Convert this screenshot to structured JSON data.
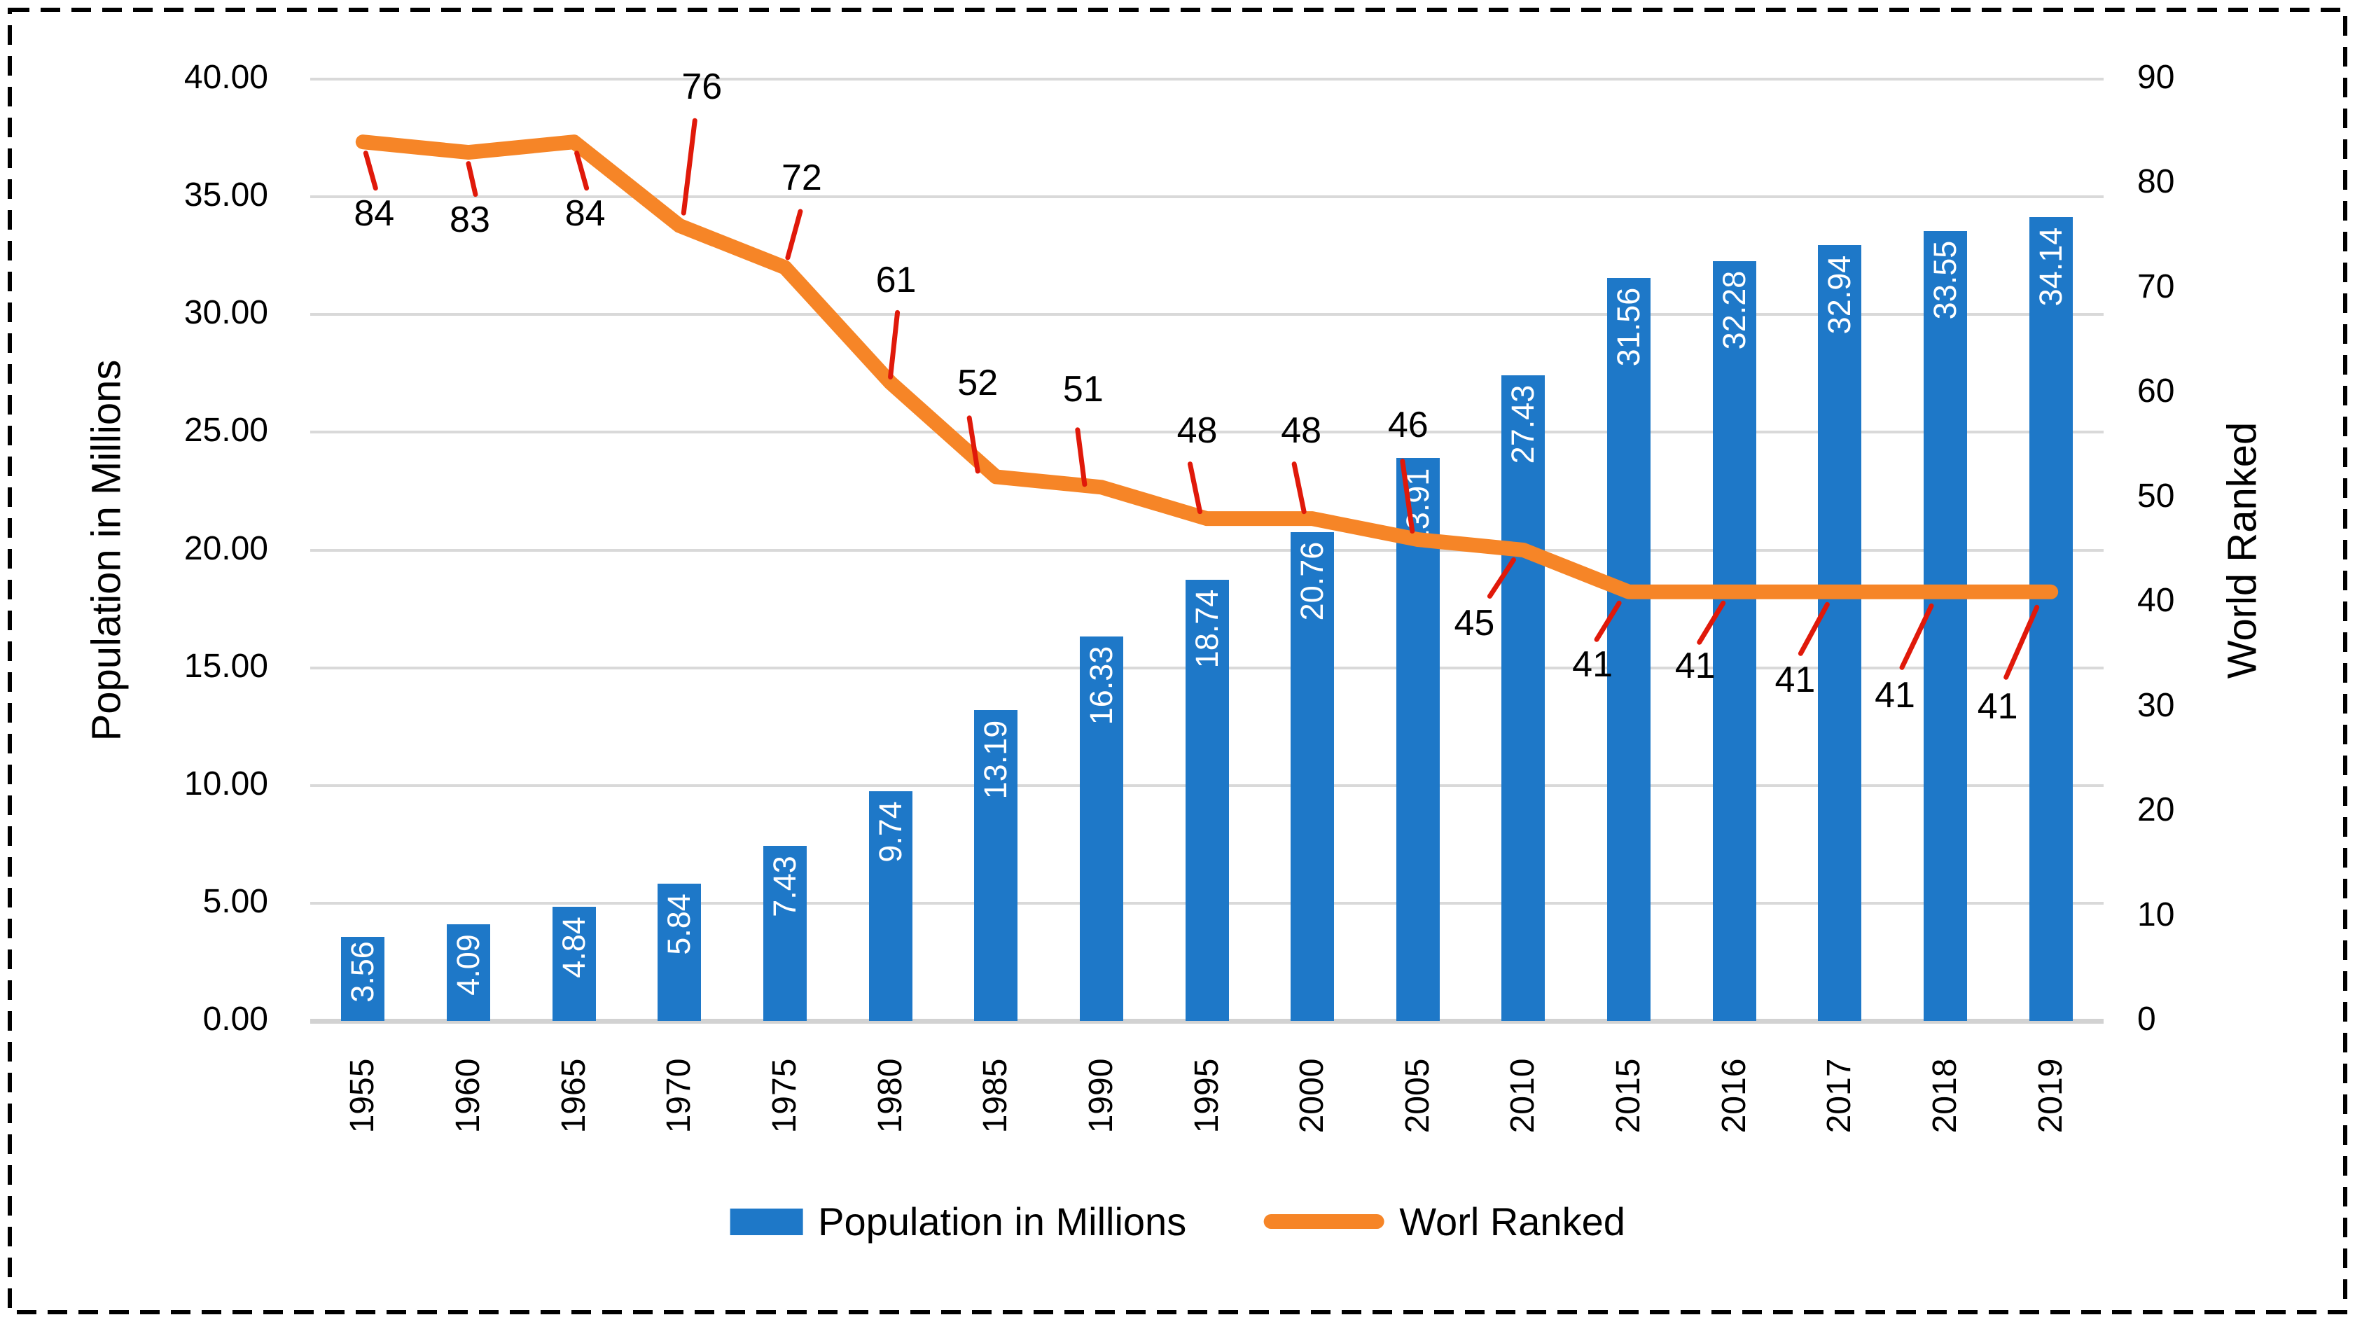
{
  "chart_data": {
    "type": "combo-bar-line",
    "categories": [
      "1955",
      "1960",
      "1965",
      "1970",
      "1975",
      "1980",
      "1985",
      "1990",
      "1995",
      "2000",
      "2005",
      "2010",
      "2015",
      "2016",
      "2017",
      "2018",
      "2019"
    ],
    "series": [
      {
        "name": "Population in Millions",
        "type": "bar",
        "axis": "left",
        "color": "#1E78C8",
        "values": [
          3.56,
          4.09,
          4.84,
          5.84,
          7.43,
          9.74,
          13.19,
          16.33,
          18.74,
          20.76,
          23.91,
          27.43,
          31.56,
          32.28,
          32.94,
          33.55,
          34.14
        ],
        "data_labels": [
          "3.56",
          "4.09",
          "4.84",
          "5.84",
          "7.43",
          "9.74",
          "13.19",
          "16.33",
          "18.74",
          "20.76",
          "23.91",
          "27.43",
          "31.56",
          "32.28",
          "32.94",
          "33.55",
          "34.14"
        ]
      },
      {
        "name": "Worl Ranked",
        "type": "line",
        "axis": "right",
        "color": "#F68527",
        "values": [
          84,
          83,
          84,
          76,
          72,
          61,
          52,
          51,
          48,
          48,
          46,
          45,
          41,
          41,
          41,
          41,
          41
        ]
      }
    ],
    "left_axis": {
      "title": "Population in Millions",
      "min": 0,
      "max": 40,
      "step": 5,
      "tick_labels": [
        "0.00",
        "5.00",
        "10.00",
        "15.00",
        "20.00",
        "25.00",
        "30.00",
        "35.00",
        "40.00"
      ]
    },
    "right_axis": {
      "title": "World Ranked",
      "min": 0,
      "max": 90,
      "step": 10,
      "tick_labels": [
        "0",
        "10",
        "20",
        "30",
        "40",
        "50",
        "60",
        "70",
        "80",
        "90"
      ]
    },
    "grid": true,
    "gridline_color": "#D9D9D9",
    "legend_position": "bottom",
    "legend": [
      {
        "label": "Population in Millions",
        "marker": "bar"
      },
      {
        "label": "Worl Ranked",
        "marker": "line"
      }
    ],
    "annotations": {
      "color": "#E0190A",
      "items": [
        {
          "text": "84",
          "line": [
            4,
            16,
            18,
            66
          ],
          "label": [
            16,
            102
          ]
        },
        {
          "text": "83",
          "line": [
            0,
            16,
            10,
            60
          ],
          "label": [
            2,
            96
          ]
        },
        {
          "text": "84",
          "line": [
            4,
            16,
            18,
            66
          ],
          "label": [
            16,
            102
          ]
        },
        {
          "text": "76",
          "line": [
            6,
            -18,
            22,
            -150
          ],
          "label": [
            32,
            -198
          ]
        },
        {
          "text": "72",
          "line": [
            4,
            -14,
            22,
            -80
          ],
          "label": [
            24,
            -128
          ]
        },
        {
          "text": "61",
          "line": [
            0,
            -8,
            10,
            -100
          ],
          "label": [
            8,
            -146
          ]
        },
        {
          "text": "52",
          "line": [
            -26,
            -8,
            -38,
            -84
          ],
          "label": [
            -26,
            -134
          ]
        },
        {
          "text": "51",
          "line": [
            -24,
            -4,
            -34,
            -82
          ],
          "label": [
            -26,
            -140
          ]
        },
        {
          "text": "48",
          "line": [
            -10,
            -10,
            -24,
            -78
          ],
          "label": [
            -14,
            -126
          ]
        },
        {
          "text": "48",
          "line": [
            -12,
            -10,
            -26,
            -78
          ],
          "label": [
            -16,
            -126
          ]
        },
        {
          "text": "46",
          "line": [
            -8,
            -12,
            -22,
            -112
          ],
          "label": [
            -14,
            -164
          ]
        },
        {
          "text": "45",
          "line": [
            -14,
            14,
            -48,
            66
          ],
          "label": [
            -70,
            104
          ]
        },
        {
          "text": "41",
          "line": [
            -14,
            16,
            -46,
            68
          ],
          "label": [
            -52,
            104
          ]
        },
        {
          "text": "41",
          "line": [
            -16,
            16,
            -50,
            72
          ],
          "label": [
            -56,
            106
          ]
        },
        {
          "text": "41",
          "line": [
            -18,
            18,
            -56,
            88
          ],
          "label": [
            -64,
            126
          ]
        },
        {
          "text": "41",
          "line": [
            -20,
            20,
            -62,
            108
          ],
          "label": [
            -72,
            148
          ]
        },
        {
          "text": "41",
          "line": [
            -20,
            22,
            -64,
            122
          ],
          "label": [
            -76,
            164
          ]
        }
      ]
    }
  }
}
